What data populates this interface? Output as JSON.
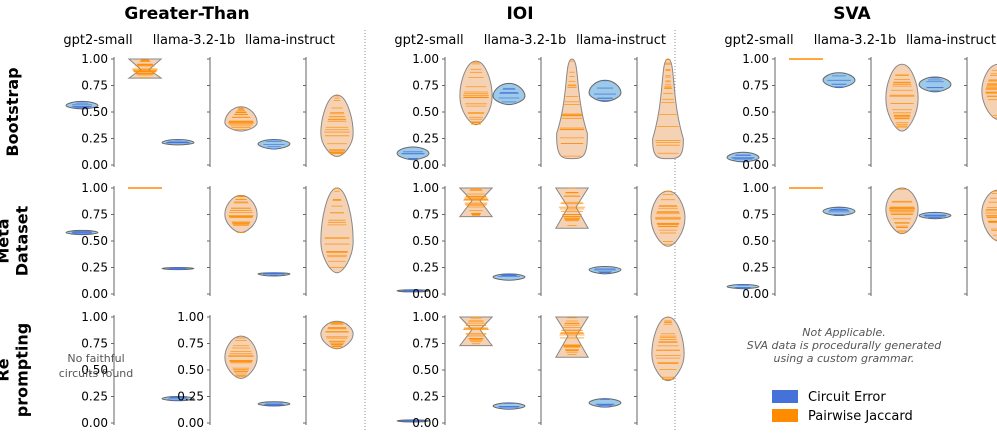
{
  "chart_data": {
    "type": "violin",
    "tasks": [
      {
        "id": "gt",
        "title": "Greater-Than"
      },
      {
        "id": "ioi",
        "title": "IOI"
      },
      {
        "id": "sva",
        "title": "SVA"
      }
    ],
    "models": [
      "gpt2-small",
      "llama-3.2-1b",
      "llama-instruct"
    ],
    "rows": [
      {
        "id": "bootstrap",
        "label": [
          "Bootstrap"
        ]
      },
      {
        "id": "meta",
        "label": [
          "Meta",
          "Dataset"
        ]
      },
      {
        "id": "reprompt",
        "label": [
          "Re",
          "prompting"
        ]
      }
    ],
    "yticks": [
      "0.00",
      "0.25",
      "0.50",
      "0.75",
      "1.00"
    ],
    "ylim": [
      0,
      1
    ],
    "series": [
      {
        "key": "circuit_error",
        "name": "Circuit Error",
        "color": "#4472d9",
        "fill": "#9ccae8"
      },
      {
        "key": "pairwise_jaccard",
        "name": "Pairwise Jaccard",
        "color": "#ff8c00",
        "fill": "#f6d2b4"
      }
    ],
    "notes": {
      "gt_reprompt": [
        "No faithful",
        "circuits found"
      ],
      "sva_reprompt": [
        "Not Applicable.",
        "SVA data is procedurally generated",
        "using a custom grammar."
      ]
    },
    "cells": {
      "bootstrap": {
        "gt": {
          "gpt2-small": {
            "circuit_error": {
              "center": 0.56,
              "lo": 0.53,
              "hi": 0.6
            },
            "pairwise_jaccard": {
              "center": 0.9,
              "lo": 0.82,
              "hi": 1.0,
              "shape": "hourglass"
            }
          },
          "llama-3.2-1b": {
            "circuit_error": {
              "center": 0.21,
              "lo": 0.19,
              "hi": 0.24
            },
            "pairwise_jaccard": {
              "center": 0.4,
              "lo": 0.32,
              "hi": 0.55
            }
          },
          "llama-instruct": {
            "circuit_error": {
              "center": 0.2,
              "lo": 0.15,
              "hi": 0.24
            },
            "pairwise_jaccard": {
              "center": 0.3,
              "lo": 0.08,
              "hi": 0.66
            }
          }
        },
        "ioi": {
          "gpt2-small": {
            "circuit_error": {
              "center": 0.11,
              "lo": 0.05,
              "hi": 0.17
            },
            "pairwise_jaccard": {
              "center": 0.65,
              "lo": 0.38,
              "hi": 0.98
            }
          },
          "llama-3.2-1b": {
            "circuit_error": {
              "center": 0.65,
              "lo": 0.57,
              "hi": 0.77
            },
            "pairwise_jaccard": {
              "center": 0.3,
              "lo": 0.06,
              "hi": 1.0,
              "shape": "tall"
            }
          },
          "llama-instruct": {
            "circuit_error": {
              "center": 0.68,
              "lo": 0.6,
              "hi": 0.8
            },
            "pairwise_jaccard": {
              "center": 0.25,
              "lo": 0.06,
              "hi": 1.0,
              "shape": "tall"
            }
          }
        },
        "sva": {
          "gpt2-small": {
            "circuit_error": {
              "center": 0.07,
              "lo": 0.03,
              "hi": 0.12
            },
            "pairwise_jaccard": {
              "center": 1.0,
              "lo": 1.0,
              "hi": 1.0,
              "shape": "line"
            }
          },
          "llama-3.2-1b": {
            "circuit_error": {
              "center": 0.8,
              "lo": 0.73,
              "hi": 0.87
            },
            "pairwise_jaccard": {
              "center": 0.63,
              "lo": 0.32,
              "hi": 0.95
            }
          },
          "llama-instruct": {
            "circuit_error": {
              "center": 0.76,
              "lo": 0.69,
              "hi": 0.83
            },
            "pairwise_jaccard": {
              "center": 0.7,
              "lo": 0.43,
              "hi": 0.95
            }
          }
        }
      },
      "meta": {
        "gt": {
          "gpt2-small": {
            "circuit_error": {
              "center": 0.58,
              "lo": 0.56,
              "hi": 0.6
            },
            "pairwise_jaccard": {
              "center": 1.0,
              "lo": 1.0,
              "hi": 1.0,
              "shape": "line"
            }
          },
          "llama-3.2-1b": {
            "circuit_error": {
              "center": 0.24,
              "lo": 0.23,
              "hi": 0.25
            },
            "pairwise_jaccard": {
              "center": 0.75,
              "lo": 0.58,
              "hi": 0.93
            }
          },
          "llama-instruct": {
            "circuit_error": {
              "center": 0.19,
              "lo": 0.17,
              "hi": 0.2
            },
            "pairwise_jaccard": {
              "center": 0.5,
              "lo": 0.2,
              "hi": 1.0
            }
          }
        },
        "ioi": {
          "gpt2-small": {
            "circuit_error": {
              "center": 0.03,
              "lo": 0.02,
              "hi": 0.04
            },
            "pairwise_jaccard": {
              "center": 0.88,
              "lo": 0.73,
              "hi": 1.0,
              "shape": "hourglass"
            }
          },
          "llama-3.2-1b": {
            "circuit_error": {
              "center": 0.16,
              "lo": 0.13,
              "hi": 0.19
            },
            "pairwise_jaccard": {
              "center": 0.82,
              "lo": 0.62,
              "hi": 1.0,
              "shape": "hourglass"
            }
          },
          "llama-instruct": {
            "circuit_error": {
              "center": 0.23,
              "lo": 0.19,
              "hi": 0.26
            },
            "pairwise_jaccard": {
              "center": 0.72,
              "lo": 0.45,
              "hi": 0.97,
              "shape": "wide"
            }
          }
        },
        "sva": {
          "gpt2-small": {
            "circuit_error": {
              "center": 0.07,
              "lo": 0.05,
              "hi": 0.09
            },
            "pairwise_jaccard": {
              "center": 1.0,
              "lo": 1.0,
              "hi": 1.0,
              "shape": "line"
            }
          },
          "llama-3.2-1b": {
            "circuit_error": {
              "center": 0.78,
              "lo": 0.74,
              "hi": 0.82
            },
            "pairwise_jaccard": {
              "center": 0.8,
              "lo": 0.57,
              "hi": 1.0
            }
          },
          "llama-instruct": {
            "circuit_error": {
              "center": 0.74,
              "lo": 0.71,
              "hi": 0.77
            },
            "pairwise_jaccard": {
              "center": 0.77,
              "lo": 0.5,
              "hi": 0.98
            }
          }
        }
      },
      "reprompt": {
        "gt": {
          "gpt2-small": null,
          "llama-3.2-1b": {
            "circuit_error": {
              "center": 0.23,
              "lo": 0.21,
              "hi": 0.25
            },
            "pairwise_jaccard": {
              "center": 0.62,
              "lo": 0.42,
              "hi": 0.82
            }
          },
          "llama-instruct": {
            "circuit_error": {
              "center": 0.18,
              "lo": 0.16,
              "hi": 0.2
            },
            "pairwise_jaccard": {
              "center": 0.84,
              "lo": 0.7,
              "hi": 0.96
            }
          }
        },
        "ioi": {
          "gpt2-small": {
            "circuit_error": {
              "center": 0.02,
              "lo": 0.01,
              "hi": 0.03
            },
            "pairwise_jaccard": {
              "center": 0.88,
              "lo": 0.73,
              "hi": 1.0,
              "shape": "hourglass"
            }
          },
          "llama-3.2-1b": {
            "circuit_error": {
              "center": 0.16,
              "lo": 0.13,
              "hi": 0.19
            },
            "pairwise_jaccard": {
              "center": 0.82,
              "lo": 0.62,
              "hi": 1.0,
              "shape": "hourglass"
            }
          },
          "llama-instruct": {
            "circuit_error": {
              "center": 0.19,
              "lo": 0.15,
              "hi": 0.23
            },
            "pairwise_jaccard": {
              "center": 0.65,
              "lo": 0.4,
              "hi": 1.0
            }
          }
        },
        "sva": null
      }
    }
  }
}
